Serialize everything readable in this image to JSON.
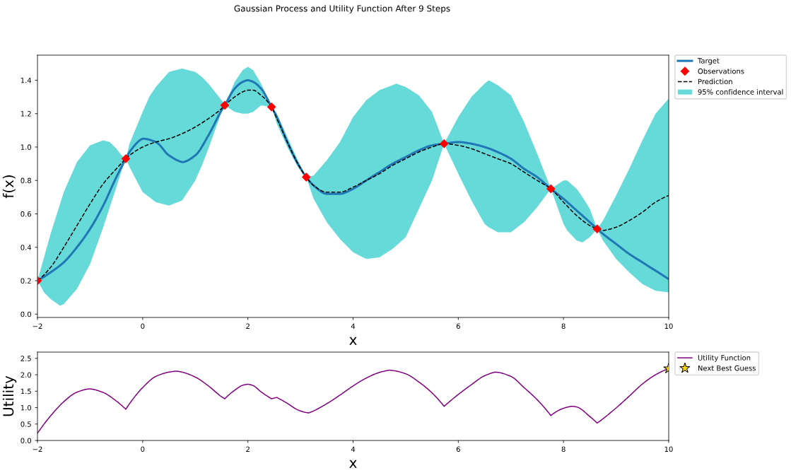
{
  "chart_data": [
    {
      "type": "line",
      "title": "Gaussian Process and Utility Function After 9 Steps",
      "xlabel": "x",
      "ylabel": "f(x)",
      "xlim": [
        -2,
        10
      ],
      "ylim": [
        -0.02,
        1.55
      ],
      "xticks": [
        {
          "value": -2,
          "label": "−2"
        },
        0,
        2,
        4,
        6,
        8,
        10
      ],
      "yticks": [
        {
          "value": 0,
          "label": "0.0"
        },
        0.2,
        0.4,
        0.6,
        0.8,
        {
          "value": 1,
          "label": "1.0"
        },
        1.2,
        1.4
      ],
      "legend": "right",
      "series": [
        {
          "name": "Target",
          "color": "#1f77b4",
          "x": [
            -2,
            -1.75,
            -1.5,
            -1.25,
            -1,
            -0.75,
            -0.5,
            -0.32,
            -0.25,
            0,
            0.25,
            0.5,
            0.75,
            1,
            1.25,
            1.5,
            1.56,
            1.75,
            1.9,
            2,
            2.1,
            2.25,
            2.45,
            2.55,
            2.75,
            2.95,
            3.11,
            3.25,
            3.5,
            3.75,
            4,
            4.25,
            4.5,
            4.75,
            5,
            5.25,
            5.5,
            5.73,
            6,
            6.25,
            6.5,
            6.75,
            7,
            7.25,
            7.5,
            7.76,
            8,
            8.25,
            8.5,
            8.64,
            8.75,
            9,
            9.25,
            9.5,
            9.75,
            10
          ],
          "values": [
            0.2,
            0.25,
            0.31,
            0.4,
            0.51,
            0.65,
            0.82,
            0.93,
            0.97,
            1.05,
            1.03,
            0.95,
            0.91,
            0.95,
            1.07,
            1.22,
            1.25,
            1.35,
            1.39,
            1.4,
            1.39,
            1.35,
            1.24,
            1.18,
            1.03,
            0.9,
            0.82,
            0.77,
            0.72,
            0.72,
            0.75,
            0.8,
            0.85,
            0.9,
            0.94,
            0.98,
            1.01,
            1.02,
            1.03,
            1.02,
            1.0,
            0.97,
            0.93,
            0.87,
            0.82,
            0.75,
            0.69,
            0.62,
            0.55,
            0.51,
            0.48,
            0.42,
            0.36,
            0.31,
            0.26,
            0.21
          ]
        },
        {
          "name": "Observations",
          "type": "scatter",
          "color": "#ff0000",
          "marker": "diamond",
          "x": [
            -2,
            -0.32,
            1.56,
            2.45,
            3.11,
            5.73,
            7.76,
            8.64
          ],
          "values": [
            0.2,
            0.93,
            1.25,
            1.24,
            0.82,
            1.02,
            0.75,
            0.51
          ]
        },
        {
          "name": "Prediction",
          "color": "#000000",
          "line_style": "dashed",
          "x": [
            -2,
            -1.75,
            -1.5,
            -1.25,
            -1,
            -0.75,
            -0.5,
            -0.32,
            -0.25,
            0,
            0.25,
            0.5,
            0.75,
            1,
            1.25,
            1.5,
            1.56,
            1.75,
            1.9,
            2,
            2.1,
            2.25,
            2.45,
            2.55,
            2.75,
            2.95,
            3.11,
            3.25,
            3.5,
            3.75,
            4,
            4.25,
            4.5,
            4.75,
            5,
            5.25,
            5.5,
            5.73,
            6,
            6.25,
            6.5,
            6.75,
            7,
            7.25,
            7.5,
            7.76,
            8,
            8.25,
            8.5,
            8.64,
            8.75,
            9,
            9.25,
            9.5,
            9.75,
            10
          ],
          "values": [
            0.2,
            0.28,
            0.4,
            0.53,
            0.66,
            0.78,
            0.87,
            0.93,
            0.95,
            1.0,
            1.03,
            1.05,
            1.08,
            1.12,
            1.17,
            1.23,
            1.25,
            1.3,
            1.33,
            1.34,
            1.34,
            1.31,
            1.24,
            1.17,
            1.03,
            0.9,
            0.82,
            0.77,
            0.73,
            0.73,
            0.76,
            0.8,
            0.84,
            0.89,
            0.93,
            0.97,
            1.0,
            1.02,
            1.01,
            0.99,
            0.96,
            0.93,
            0.9,
            0.85,
            0.8,
            0.75,
            0.67,
            0.59,
            0.53,
            0.51,
            0.5,
            0.52,
            0.56,
            0.61,
            0.67,
            0.71
          ]
        },
        {
          "name": "95% confidence interval",
          "type": "area",
          "color": "#66d9d9",
          "x": [
            -2,
            -1.875,
            -1.75,
            -1.57,
            -1.5,
            -1.25,
            -1,
            -0.75,
            -0.625,
            -0.5,
            -0.4,
            -0.32,
            -0.25,
            0,
            0.125,
            0.25,
            0.5,
            0.75,
            1,
            1.125,
            1.25,
            1.375,
            1.5,
            1.56,
            1.75,
            1.9,
            2,
            2.1,
            2.25,
            2.45,
            2.55,
            2.75,
            2.95,
            3.11,
            3.25,
            3.5,
            3.75,
            4,
            4.25,
            4.5,
            4.75,
            4.82,
            5,
            5.25,
            5.5,
            5.73,
            6,
            6.25,
            6.5,
            6.58,
            6.75,
            7,
            7.25,
            7.5,
            7.76,
            8,
            8.07,
            8.25,
            8.36,
            8.5,
            8.64,
            8.75,
            9,
            9.25,
            9.5,
            9.75,
            10
          ],
          "values": [
            null,
            null,
            null,
            null,
            null,
            null,
            null,
            null,
            null,
            null,
            null,
            null,
            null,
            null,
            null,
            null,
            null,
            null,
            null,
            null,
            null,
            null,
            null,
            null,
            null,
            null,
            null,
            null,
            null,
            null,
            null,
            null,
            null,
            null,
            null,
            null,
            null,
            null,
            null,
            null,
            null,
            null,
            null,
            null,
            null,
            null,
            null,
            null,
            null,
            null,
            null,
            null,
            null,
            null,
            null,
            null,
            null,
            null,
            null,
            null,
            null,
            null,
            null,
            null,
            null,
            null,
            null
          ],
          "lower": [
            0.2,
            0.13,
            0.09,
            0.05,
            0.06,
            0.15,
            0.3,
            0.52,
            0.64,
            0.76,
            0.86,
            0.93,
            0.88,
            0.73,
            0.7,
            0.67,
            0.65,
            0.68,
            0.8,
            0.89,
            0.99,
            1.1,
            1.21,
            1.25,
            1.21,
            1.2,
            1.2,
            1.21,
            1.25,
            1.24,
            1.14,
            1.0,
            0.88,
            0.82,
            0.69,
            0.55,
            0.45,
            0.37,
            0.33,
            0.34,
            0.39,
            0.41,
            0.46,
            0.63,
            0.8,
            1.02,
            0.84,
            0.68,
            0.54,
            0.52,
            0.49,
            0.49,
            0.55,
            0.64,
            0.75,
            0.54,
            0.5,
            0.44,
            0.43,
            0.46,
            0.51,
            0.44,
            0.33,
            0.25,
            0.18,
            0.14,
            0.13
          ],
          "upper": [
            0.2,
            0.34,
            0.48,
            0.66,
            0.73,
            0.91,
            1.01,
            1.04,
            1.03,
            0.99,
            0.95,
            0.93,
            1.02,
            1.21,
            1.3,
            1.36,
            1.45,
            1.47,
            1.45,
            1.42,
            1.38,
            1.33,
            1.28,
            1.25,
            1.39,
            1.46,
            1.48,
            1.46,
            1.38,
            1.24,
            1.2,
            1.06,
            0.92,
            0.82,
            0.83,
            0.92,
            1.03,
            1.18,
            1.28,
            1.34,
            1.37,
            1.38,
            1.36,
            1.31,
            1.21,
            1.02,
            1.18,
            1.3,
            1.38,
            1.4,
            1.37,
            1.31,
            1.15,
            0.96,
            0.75,
            0.8,
            0.8,
            0.75,
            0.7,
            0.63,
            0.51,
            0.56,
            0.71,
            0.87,
            1.04,
            1.2,
            1.29
          ]
        }
      ]
    },
    {
      "type": "line",
      "xlabel": "x",
      "ylabel": "Utility",
      "xlim": [
        -2,
        10
      ],
      "ylim": [
        0,
        2.69
      ],
      "xticks": [
        {
          "value": -2,
          "label": "−2"
        },
        0,
        2,
        4,
        6,
        8,
        10
      ],
      "yticks": [
        {
          "value": 0,
          "label": "0.0"
        },
        0.5,
        {
          "value": 1,
          "label": "1.0"
        },
        1.5,
        {
          "value": 2,
          "label": "2.0"
        },
        2.5
      ],
      "legend": "right",
      "series": [
        {
          "name": "Utility Function",
          "color": "#800080",
          "x": [
            -2,
            -1.75,
            -1.5,
            -1.25,
            -1,
            -0.75,
            -0.5,
            -0.32,
            -0.25,
            0,
            0.25,
            0.5,
            0.64,
            0.75,
            1,
            1.25,
            1.5,
            1.56,
            1.75,
            1.9,
            2,
            2.1,
            2.25,
            2.45,
            2.55,
            2.75,
            2.95,
            3.11,
            3.16,
            3.25,
            3.5,
            3.75,
            4,
            4.25,
            4.5,
            4.69,
            4.75,
            5,
            5.25,
            5.5,
            5.73,
            6,
            6.25,
            6.5,
            6.7,
            7,
            7.25,
            7.5,
            7.76,
            8,
            8.16,
            8.25,
            8.5,
            8.64,
            8.75,
            9,
            9.25,
            9.5,
            9.75,
            10
          ],
          "values": [
            0.22,
            0.75,
            1.18,
            1.47,
            1.57,
            1.46,
            1.2,
            0.95,
            1.12,
            1.61,
            1.95,
            2.08,
            2.11,
            2.08,
            1.93,
            1.66,
            1.33,
            1.27,
            1.53,
            1.68,
            1.71,
            1.67,
            1.48,
            1.27,
            1.31,
            1.13,
            0.93,
            0.85,
            0.84,
            0.9,
            1.12,
            1.38,
            1.66,
            1.9,
            2.07,
            2.14,
            2.13,
            2.03,
            1.78,
            1.45,
            1.04,
            1.4,
            1.7,
            1.97,
            2.08,
            1.95,
            1.61,
            1.24,
            0.76,
            0.98,
            1.04,
            1.02,
            0.73,
            0.53,
            0.66,
            0.99,
            1.35,
            1.72,
            2.0,
            2.19
          ]
        },
        {
          "name": "Next Best Guess",
          "type": "scatter",
          "color": "#ffd700",
          "marker": "star",
          "x": [
            10
          ],
          "values": [
            2.19
          ]
        }
      ]
    }
  ]
}
